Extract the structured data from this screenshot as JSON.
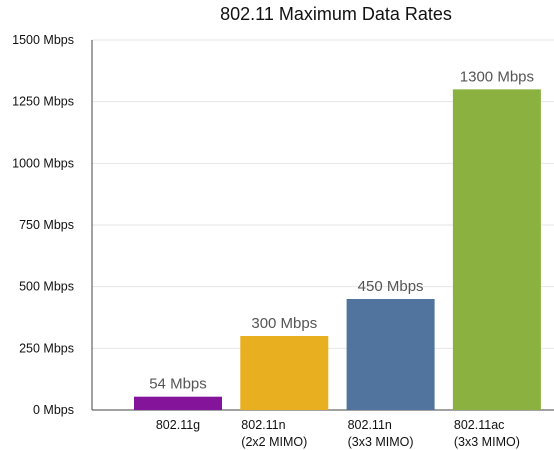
{
  "chart_data": {
    "type": "bar",
    "title": "802.11 Maximum Data Rates",
    "xlabel": "",
    "ylabel": "",
    "ylim": [
      0,
      1500
    ],
    "yticks": [
      {
        "value": 0,
        "label": "0 Mbps"
      },
      {
        "value": 250,
        "label": "250 Mbps"
      },
      {
        "value": 500,
        "label": "500 Mbps"
      },
      {
        "value": 750,
        "label": "750 Mbps"
      },
      {
        "value": 1000,
        "label": "1000 Mbps"
      },
      {
        "value": 1250,
        "label": "1250 Mbps"
      },
      {
        "value": 1500,
        "label": "1500 Mbps"
      }
    ],
    "grid": true,
    "legend": "none",
    "bars": [
      {
        "category": [
          "802.11g"
        ],
        "value": 54,
        "label": "54 Mbps",
        "color": "#84149a"
      },
      {
        "category": [
          "802.11n",
          "(2x2 MIMO)"
        ],
        "value": 300,
        "label": "300 Mbps",
        "color": "#e8b021"
      },
      {
        "category": [
          "802.11n",
          "(3x3 MIMO)"
        ],
        "value": 450,
        "label": "450 Mbps",
        "color": "#50749e"
      },
      {
        "category": [
          "802.11ac",
          "(3x3 MIMO)"
        ],
        "value": 1300,
        "label": "1300 Mbps",
        "color": "#8bb240"
      }
    ]
  }
}
